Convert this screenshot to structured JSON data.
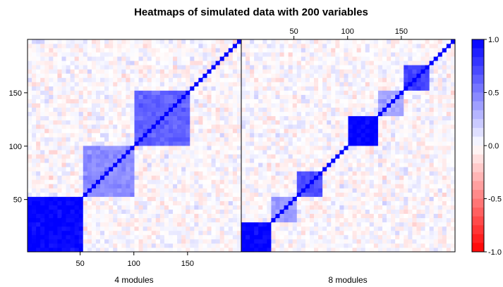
{
  "title": "Heatmaps of simulated data with 200 variables",
  "chart_data": [
    {
      "type": "heatmap",
      "label": "4 modules",
      "n_variables": 200,
      "xlim": [
        1,
        200
      ],
      "ylim": [
        1,
        200
      ],
      "x_ticks": [
        50,
        100,
        150
      ],
      "x_tick_labels": [
        "50",
        "100",
        "150"
      ],
      "y_ticks": [
        50,
        100,
        150
      ],
      "y_tick_labels": [
        "50",
        "100",
        "150"
      ],
      "modules": [
        {
          "start": 1,
          "end": 50,
          "correlation": 0.98
        },
        {
          "start": 51,
          "end": 100,
          "correlation": 0.45
        },
        {
          "start": 101,
          "end": 150,
          "correlation": 0.62
        },
        {
          "start": 151,
          "end": 200,
          "correlation": 0.0
        }
      ],
      "diagonal": 1.0
    },
    {
      "type": "heatmap",
      "label": "8 modules",
      "n_variables": 200,
      "xlim": [
        1,
        200
      ],
      "ylim": [
        1,
        200
      ],
      "x_ticks": [
        50,
        100,
        150
      ],
      "x_tick_labels": [
        "50",
        "100",
        "150"
      ],
      "modules": [
        {
          "start": 1,
          "end": 25,
          "correlation": 0.98
        },
        {
          "start": 26,
          "end": 50,
          "correlation": 0.4
        },
        {
          "start": 51,
          "end": 75,
          "correlation": 0.7
        },
        {
          "start": 76,
          "end": 100,
          "correlation": 0.0
        },
        {
          "start": 101,
          "end": 125,
          "correlation": 0.98
        },
        {
          "start": 126,
          "end": 150,
          "correlation": 0.35
        },
        {
          "start": 151,
          "end": 175,
          "correlation": 0.75
        },
        {
          "start": 176,
          "end": 200,
          "correlation": 0.0
        }
      ],
      "diagonal": 1.0
    }
  ],
  "colorkey": {
    "range": [
      -1.0,
      1.0
    ],
    "ticks": [
      1.0,
      0.5,
      0.0,
      -0.5,
      -1.0
    ],
    "tick_labels": [
      "1.0",
      "0.5",
      "0.0",
      "-0.5",
      "-1.0"
    ],
    "low_color": "#ff0000",
    "mid_color": "#ffffff",
    "high_color": "#0000ff"
  }
}
